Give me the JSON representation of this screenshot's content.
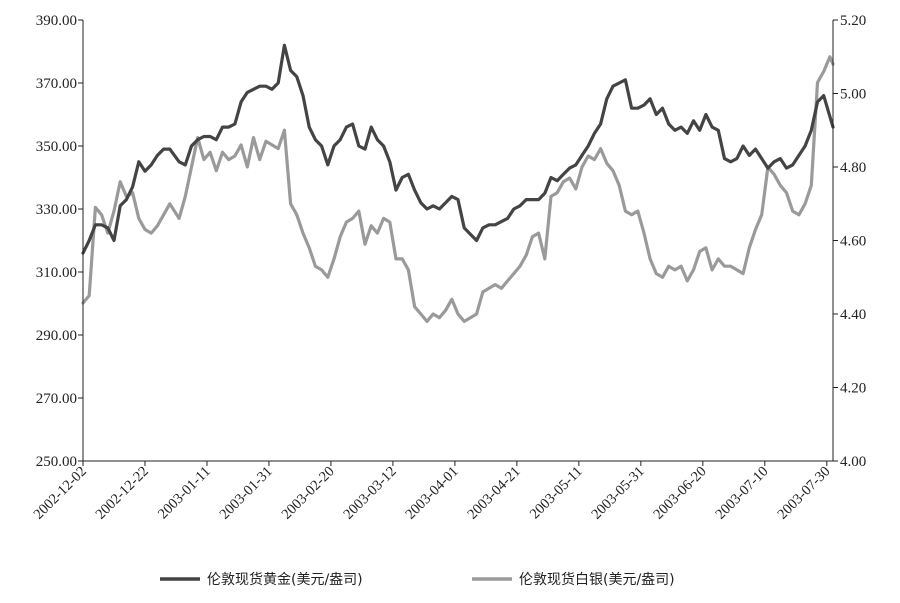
{
  "chart_data": {
    "type": "line",
    "x_ticks": [
      "2002-12-02",
      "2002-12-22",
      "2003-01-11",
      "2003-01-31",
      "2003-02-20",
      "2003-03-12",
      "2003-04-01",
      "2003-04-21",
      "2003-05-11",
      "2003-05-31",
      "2003-06-20",
      "2003-07-10",
      "2003-07-30"
    ],
    "x_range": [
      "2002-12-02",
      "2003-08-01"
    ],
    "y_left": {
      "ylim": [
        250,
        390
      ],
      "ticks": [
        "250.00",
        "270.00",
        "290.00",
        "310.00",
        "330.00",
        "350.00",
        "370.00",
        "390.00"
      ]
    },
    "y_right": {
      "ylim": [
        4.0,
        5.2
      ],
      "ticks": [
        "4.00",
        "4.20",
        "4.40",
        "4.60",
        "4.80",
        "5.00",
        "5.20"
      ]
    },
    "legend_position": "bottom",
    "grid": false,
    "colors": {
      "gold": "#444444",
      "silver": "#9a9a9a"
    },
    "series": [
      {
        "name": "伦敦现货黄金(美元/盎司)",
        "axis": "left",
        "points": [
          [
            "2002-12-02",
            316
          ],
          [
            "2002-12-04",
            320
          ],
          [
            "2002-12-06",
            325
          ],
          [
            "2002-12-08",
            325
          ],
          [
            "2002-12-10",
            324
          ],
          [
            "2002-12-12",
            320
          ],
          [
            "2002-12-14",
            331
          ],
          [
            "2002-12-16",
            333
          ],
          [
            "2002-12-18",
            337
          ],
          [
            "2002-12-20",
            345
          ],
          [
            "2002-12-22",
            342
          ],
          [
            "2002-12-24",
            344
          ],
          [
            "2002-12-26",
            347
          ],
          [
            "2002-12-28",
            349
          ],
          [
            "2002-12-30",
            349
          ],
          [
            "2003-01-02",
            345
          ],
          [
            "2003-01-04",
            344
          ],
          [
            "2003-01-06",
            350
          ],
          [
            "2003-01-08",
            352
          ],
          [
            "2003-01-10",
            353
          ],
          [
            "2003-01-12",
            353
          ],
          [
            "2003-01-14",
            352
          ],
          [
            "2003-01-16",
            356
          ],
          [
            "2003-01-18",
            356
          ],
          [
            "2003-01-20",
            357
          ],
          [
            "2003-01-22",
            364
          ],
          [
            "2003-01-24",
            367
          ],
          [
            "2003-01-26",
            368
          ],
          [
            "2003-01-28",
            369
          ],
          [
            "2003-01-30",
            369
          ],
          [
            "2003-02-01",
            368
          ],
          [
            "2003-02-03",
            370
          ],
          [
            "2003-02-05",
            382
          ],
          [
            "2003-02-07",
            374
          ],
          [
            "2003-02-09",
            372
          ],
          [
            "2003-02-11",
            366
          ],
          [
            "2003-02-13",
            356
          ],
          [
            "2003-02-15",
            352
          ],
          [
            "2003-02-17",
            350
          ],
          [
            "2003-02-19",
            344
          ],
          [
            "2003-02-21",
            350
          ],
          [
            "2003-02-23",
            352
          ],
          [
            "2003-02-25",
            356
          ],
          [
            "2003-02-27",
            357
          ],
          [
            "2003-03-01",
            350
          ],
          [
            "2003-03-03",
            349
          ],
          [
            "2003-03-05",
            356
          ],
          [
            "2003-03-07",
            352
          ],
          [
            "2003-03-09",
            350
          ],
          [
            "2003-03-11",
            345
          ],
          [
            "2003-03-13",
            336
          ],
          [
            "2003-03-15",
            340
          ],
          [
            "2003-03-17",
            341
          ],
          [
            "2003-03-19",
            336
          ],
          [
            "2003-03-21",
            332
          ],
          [
            "2003-03-23",
            330
          ],
          [
            "2003-03-25",
            331
          ],
          [
            "2003-03-27",
            330
          ],
          [
            "2003-03-29",
            332
          ],
          [
            "2003-03-31",
            334
          ],
          [
            "2003-04-02",
            333
          ],
          [
            "2003-04-04",
            324
          ],
          [
            "2003-04-06",
            322
          ],
          [
            "2003-04-08",
            320
          ],
          [
            "2003-04-10",
            324
          ],
          [
            "2003-04-12",
            325
          ],
          [
            "2003-04-14",
            325
          ],
          [
            "2003-04-16",
            326
          ],
          [
            "2003-04-18",
            327
          ],
          [
            "2003-04-20",
            330
          ],
          [
            "2003-04-22",
            331
          ],
          [
            "2003-04-24",
            333
          ],
          [
            "2003-04-26",
            333
          ],
          [
            "2003-04-28",
            333
          ],
          [
            "2003-04-30",
            335
          ],
          [
            "2003-05-02",
            340
          ],
          [
            "2003-05-04",
            339
          ],
          [
            "2003-05-06",
            341
          ],
          [
            "2003-05-08",
            343
          ],
          [
            "2003-05-10",
            344
          ],
          [
            "2003-05-12",
            347
          ],
          [
            "2003-05-14",
            350
          ],
          [
            "2003-05-16",
            354
          ],
          [
            "2003-05-18",
            357
          ],
          [
            "2003-05-20",
            365
          ],
          [
            "2003-05-22",
            369
          ],
          [
            "2003-05-24",
            370
          ],
          [
            "2003-05-26",
            371
          ],
          [
            "2003-05-28",
            362
          ],
          [
            "2003-05-30",
            362
          ],
          [
            "2003-06-01",
            363
          ],
          [
            "2003-06-03",
            365
          ],
          [
            "2003-06-05",
            360
          ],
          [
            "2003-06-07",
            362
          ],
          [
            "2003-06-09",
            357
          ],
          [
            "2003-06-11",
            355
          ],
          [
            "2003-06-13",
            356
          ],
          [
            "2003-06-15",
            354
          ],
          [
            "2003-06-17",
            358
          ],
          [
            "2003-06-19",
            355
          ],
          [
            "2003-06-21",
            360
          ],
          [
            "2003-06-23",
            356
          ],
          [
            "2003-06-25",
            355
          ],
          [
            "2003-06-27",
            346
          ],
          [
            "2003-06-29",
            345
          ],
          [
            "2003-07-01",
            346
          ],
          [
            "2003-07-03",
            350
          ],
          [
            "2003-07-05",
            347
          ],
          [
            "2003-07-07",
            349
          ],
          [
            "2003-07-09",
            346
          ],
          [
            "2003-07-11",
            343
          ],
          [
            "2003-07-13",
            345
          ],
          [
            "2003-07-15",
            346
          ],
          [
            "2003-07-17",
            343
          ],
          [
            "2003-07-19",
            344
          ],
          [
            "2003-07-21",
            347
          ],
          [
            "2003-07-23",
            350
          ],
          [
            "2003-07-25",
            355
          ],
          [
            "2003-07-27",
            364
          ],
          [
            "2003-07-29",
            366
          ],
          [
            "2003-08-01",
            356
          ]
        ]
      },
      {
        "name": "伦敦现货白银(美元/盎司)",
        "axis": "right",
        "points": [
          [
            "2002-12-02",
            4.43
          ],
          [
            "2002-12-04",
            4.45
          ],
          [
            "2002-12-06",
            4.69
          ],
          [
            "2002-12-08",
            4.67
          ],
          [
            "2002-12-10",
            4.62
          ],
          [
            "2002-12-12",
            4.68
          ],
          [
            "2002-12-14",
            4.76
          ],
          [
            "2002-12-16",
            4.72
          ],
          [
            "2002-12-18",
            4.73
          ],
          [
            "2002-12-20",
            4.66
          ],
          [
            "2002-12-22",
            4.63
          ],
          [
            "2002-12-24",
            4.62
          ],
          [
            "2002-12-26",
            4.64
          ],
          [
            "2002-12-28",
            4.67
          ],
          [
            "2002-12-30",
            4.7
          ],
          [
            "2003-01-02",
            4.66
          ],
          [
            "2003-01-04",
            4.72
          ],
          [
            "2003-01-06",
            4.8
          ],
          [
            "2003-01-08",
            4.88
          ],
          [
            "2003-01-10",
            4.82
          ],
          [
            "2003-01-12",
            4.84
          ],
          [
            "2003-01-14",
            4.79
          ],
          [
            "2003-01-16",
            4.84
          ],
          [
            "2003-01-18",
            4.82
          ],
          [
            "2003-01-20",
            4.83
          ],
          [
            "2003-01-22",
            4.86
          ],
          [
            "2003-01-24",
            4.8
          ],
          [
            "2003-01-26",
            4.88
          ],
          [
            "2003-01-28",
            4.82
          ],
          [
            "2003-01-30",
            4.87
          ],
          [
            "2003-02-01",
            4.86
          ],
          [
            "2003-02-03",
            4.85
          ],
          [
            "2003-02-05",
            4.9
          ],
          [
            "2003-02-07",
            4.7
          ],
          [
            "2003-02-09",
            4.67
          ],
          [
            "2003-02-11",
            4.62
          ],
          [
            "2003-02-13",
            4.58
          ],
          [
            "2003-02-15",
            4.53
          ],
          [
            "2003-02-17",
            4.52
          ],
          [
            "2003-02-19",
            4.5
          ],
          [
            "2003-02-21",
            4.55
          ],
          [
            "2003-02-23",
            4.61
          ],
          [
            "2003-02-25",
            4.65
          ],
          [
            "2003-02-27",
            4.66
          ],
          [
            "2003-03-01",
            4.68
          ],
          [
            "2003-03-03",
            4.59
          ],
          [
            "2003-03-05",
            4.64
          ],
          [
            "2003-03-07",
            4.62
          ],
          [
            "2003-03-09",
            4.66
          ],
          [
            "2003-03-11",
            4.65
          ],
          [
            "2003-03-13",
            4.55
          ],
          [
            "2003-03-15",
            4.55
          ],
          [
            "2003-03-17",
            4.52
          ],
          [
            "2003-03-19",
            4.42
          ],
          [
            "2003-03-21",
            4.4
          ],
          [
            "2003-03-23",
            4.38
          ],
          [
            "2003-03-25",
            4.4
          ],
          [
            "2003-03-27",
            4.39
          ],
          [
            "2003-03-29",
            4.41
          ],
          [
            "2003-03-31",
            4.44
          ],
          [
            "2003-04-02",
            4.4
          ],
          [
            "2003-04-04",
            4.38
          ],
          [
            "2003-04-06",
            4.39
          ],
          [
            "2003-04-08",
            4.4
          ],
          [
            "2003-04-10",
            4.46
          ],
          [
            "2003-04-12",
            4.47
          ],
          [
            "2003-04-14",
            4.48
          ],
          [
            "2003-04-16",
            4.47
          ],
          [
            "2003-04-18",
            4.49
          ],
          [
            "2003-04-20",
            4.51
          ],
          [
            "2003-04-22",
            4.53
          ],
          [
            "2003-04-24",
            4.56
          ],
          [
            "2003-04-26",
            4.61
          ],
          [
            "2003-04-28",
            4.62
          ],
          [
            "2003-04-30",
            4.55
          ],
          [
            "2003-05-02",
            4.72
          ],
          [
            "2003-05-04",
            4.73
          ],
          [
            "2003-05-06",
            4.76
          ],
          [
            "2003-05-08",
            4.77
          ],
          [
            "2003-05-10",
            4.74
          ],
          [
            "2003-05-12",
            4.8
          ],
          [
            "2003-05-14",
            4.83
          ],
          [
            "2003-05-16",
            4.82
          ],
          [
            "2003-05-18",
            4.85
          ],
          [
            "2003-05-20",
            4.81
          ],
          [
            "2003-05-22",
            4.79
          ],
          [
            "2003-05-24",
            4.75
          ],
          [
            "2003-05-26",
            4.68
          ],
          [
            "2003-05-28",
            4.67
          ],
          [
            "2003-05-30",
            4.68
          ],
          [
            "2003-06-01",
            4.62
          ],
          [
            "2003-06-03",
            4.55
          ],
          [
            "2003-06-05",
            4.51
          ],
          [
            "2003-06-07",
            4.5
          ],
          [
            "2003-06-09",
            4.53
          ],
          [
            "2003-06-11",
            4.52
          ],
          [
            "2003-06-13",
            4.53
          ],
          [
            "2003-06-15",
            4.49
          ],
          [
            "2003-06-17",
            4.52
          ],
          [
            "2003-06-19",
            4.57
          ],
          [
            "2003-06-21",
            4.58
          ],
          [
            "2003-06-23",
            4.52
          ],
          [
            "2003-06-25",
            4.55
          ],
          [
            "2003-06-27",
            4.53
          ],
          [
            "2003-06-29",
            4.53
          ],
          [
            "2003-07-01",
            4.52
          ],
          [
            "2003-07-03",
            4.51
          ],
          [
            "2003-07-05",
            4.58
          ],
          [
            "2003-07-07",
            4.63
          ],
          [
            "2003-07-09",
            4.67
          ],
          [
            "2003-07-11",
            4.8
          ],
          [
            "2003-07-13",
            4.78
          ],
          [
            "2003-07-15",
            4.75
          ],
          [
            "2003-07-17",
            4.73
          ],
          [
            "2003-07-19",
            4.68
          ],
          [
            "2003-07-21",
            4.67
          ],
          [
            "2003-07-23",
            4.7
          ],
          [
            "2003-07-25",
            4.75
          ],
          [
            "2003-07-27",
            5.03
          ],
          [
            "2003-07-29",
            5.06
          ],
          [
            "2003-07-31",
            5.1
          ],
          [
            "2003-08-01",
            5.08
          ]
        ]
      }
    ]
  }
}
